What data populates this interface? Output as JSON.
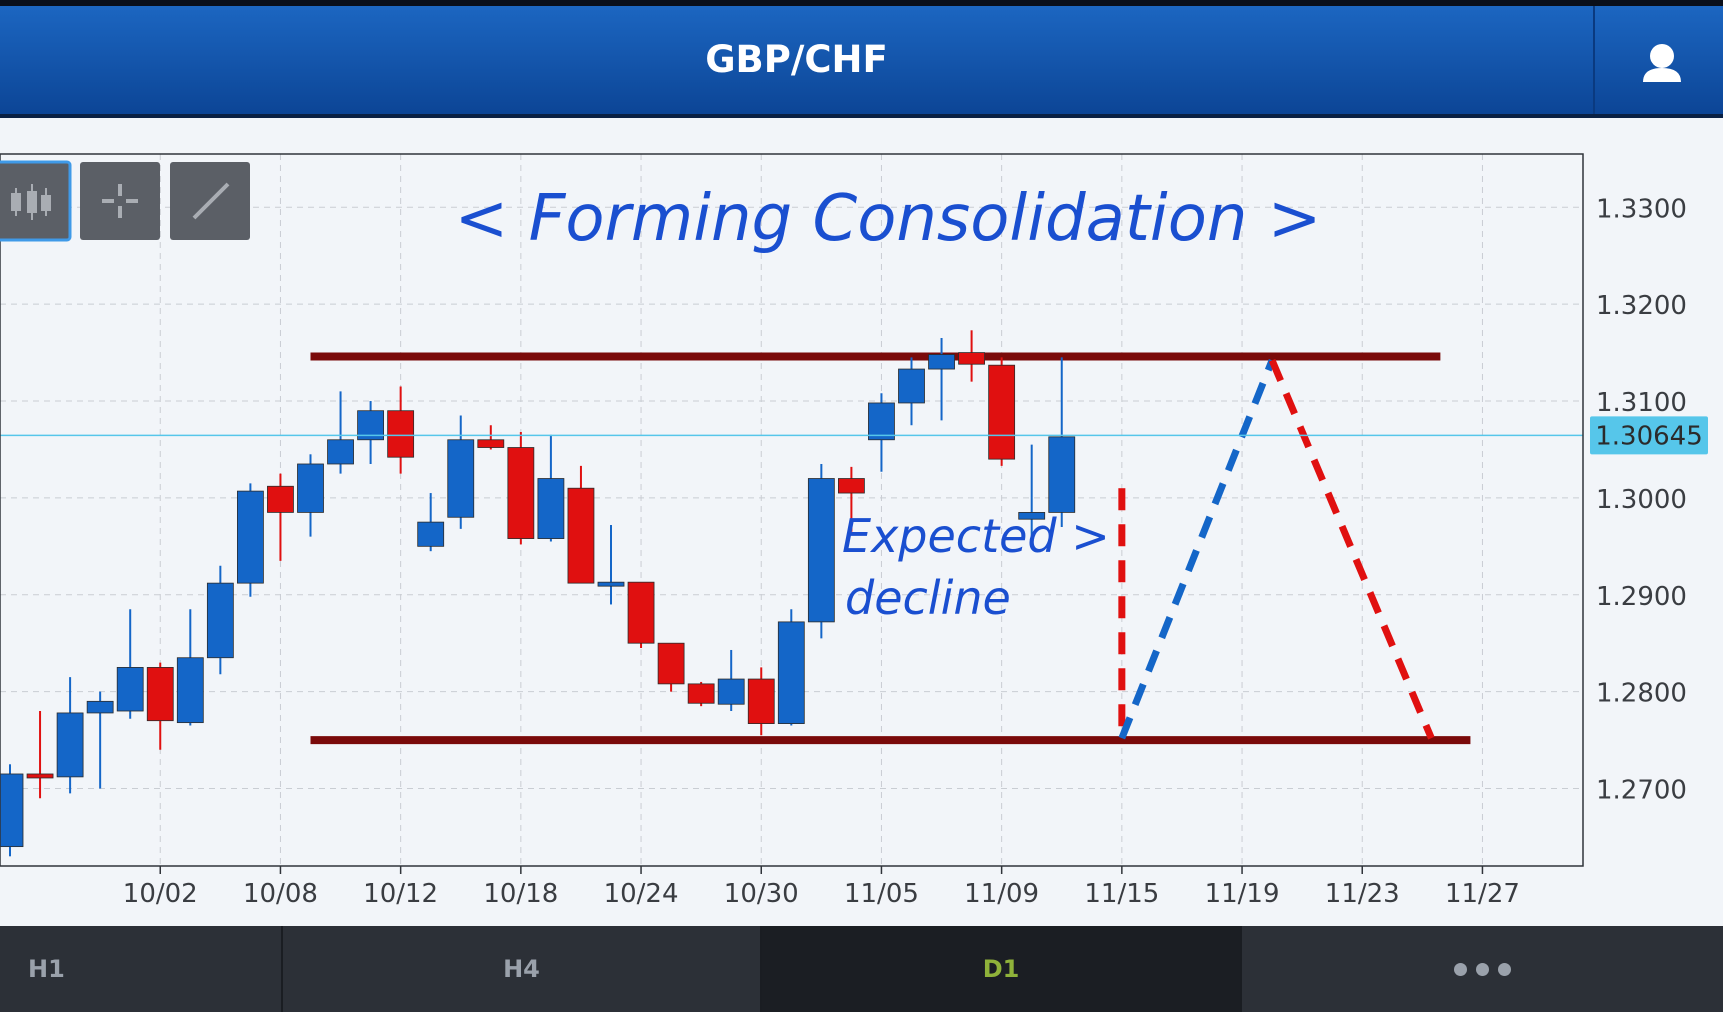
{
  "header": {
    "title": "GBP/CHF"
  },
  "colors": {
    "bull": "#1466c8",
    "bear": "#e01010",
    "level_line": "#7a0a0a",
    "annotation_text": "#1a4fd0",
    "price_line": "#56c6ea",
    "price_tag": "#56c6ea"
  },
  "toolbar": {
    "icons": [
      "candlestick-icon",
      "crosshair-icon",
      "draw-line-icon"
    ]
  },
  "tabs": {
    "items": [
      "H1",
      "H4",
      "D1",
      ""
    ],
    "active": "D1"
  },
  "chart_data": {
    "type": "candlestick",
    "title": "< Forming  Consolidation >",
    "annotation": [
      "Expected >",
      "decline"
    ],
    "y_ticks": [
      "1.3300",
      "1.3200",
      "1.3100",
      "1.3000",
      "1.2900",
      "1.2800",
      "1.2700"
    ],
    "ylim": [
      1.262,
      1.3355
    ],
    "x_ticks": [
      "10/02",
      "10/08",
      "10/12",
      "10/18",
      "10/24",
      "10/30",
      "11/05",
      "11/09",
      "11/15",
      "11/19",
      "11/23",
      "11/27"
    ],
    "x_tick_index": [
      5,
      9,
      13,
      17,
      21,
      25,
      29,
      33,
      37,
      41,
      45,
      49
    ],
    "current_price": 1.30645,
    "current_price_label": "1.30645",
    "grid": true,
    "candles": [
      {
        "o": 1.264,
        "h": 1.2725,
        "l": 1.263,
        "c": 1.2715
      },
      {
        "o": 1.2715,
        "h": 1.278,
        "l": 1.269,
        "c": 1.2712
      },
      {
        "o": 1.2712,
        "h": 1.2815,
        "l": 1.2695,
        "c": 1.2778
      },
      {
        "o": 1.2778,
        "h": 1.28,
        "l": 1.27,
        "c": 1.279
      },
      {
        "o": 1.278,
        "h": 1.2885,
        "l": 1.2772,
        "c": 1.2825
      },
      {
        "o": 1.2825,
        "h": 1.283,
        "l": 1.274,
        "c": 1.277
      },
      {
        "o": 1.2768,
        "h": 1.2885,
        "l": 1.2765,
        "c": 1.2835
      },
      {
        "o": 1.2835,
        "h": 1.293,
        "l": 1.2818,
        "c": 1.2912
      },
      {
        "o": 1.2912,
        "h": 1.3015,
        "l": 1.2898,
        "c": 1.3007
      },
      {
        "o": 1.3012,
        "h": 1.3025,
        "l": 1.2935,
        "c": 1.2985
      },
      {
        "o": 1.2985,
        "h": 1.3045,
        "l": 1.296,
        "c": 1.3035
      },
      {
        "o": 1.3035,
        "h": 1.311,
        "l": 1.3025,
        "c": 1.306
      },
      {
        "o": 1.306,
        "h": 1.31,
        "l": 1.3035,
        "c": 1.309
      },
      {
        "o": 1.309,
        "h": 1.3115,
        "l": 1.3025,
        "c": 1.3042
      },
      {
        "o": 1.295,
        "h": 1.3005,
        "l": 1.2945,
        "c": 1.2975
      },
      {
        "o": 1.298,
        "h": 1.3085,
        "l": 1.2968,
        "c": 1.306
      },
      {
        "o": 1.306,
        "h": 1.3075,
        "l": 1.305,
        "c": 1.3052
      },
      {
        "o": 1.3052,
        "h": 1.3068,
        "l": 1.2952,
        "c": 1.2958
      },
      {
        "o": 1.2958,
        "h": 1.3065,
        "l": 1.2955,
        "c": 1.302
      },
      {
        "o": 1.301,
        "h": 1.3033,
        "l": 1.2912,
        "c": 1.2912
      },
      {
        "o": 1.2912,
        "h": 1.2972,
        "l": 1.289,
        "c": 1.2913
      },
      {
        "o": 1.2913,
        "h": 1.2913,
        "l": 1.2845,
        "c": 1.285
      },
      {
        "o": 1.285,
        "h": 1.285,
        "l": 1.28,
        "c": 1.2808
      },
      {
        "o": 1.2808,
        "h": 1.281,
        "l": 1.2785,
        "c": 1.2788
      },
      {
        "o": 1.2787,
        "h": 1.2843,
        "l": 1.278,
        "c": 1.2813
      },
      {
        "o": 1.2813,
        "h": 1.2825,
        "l": 1.2755,
        "c": 1.2767
      },
      {
        "o": 1.2767,
        "h": 1.2885,
        "l": 1.2765,
        "c": 1.2872
      },
      {
        "o": 1.2872,
        "h": 1.3035,
        "l": 1.2855,
        "c": 1.302
      },
      {
        "o": 1.302,
        "h": 1.3032,
        "l": 1.2965,
        "c": 1.3005
      },
      {
        "o": 1.306,
        "h": 1.3108,
        "l": 1.3027,
        "c": 1.3098
      },
      {
        "o": 1.3098,
        "h": 1.3145,
        "l": 1.3075,
        "c": 1.3133
      },
      {
        "o": 1.3133,
        "h": 1.3165,
        "l": 1.308,
        "c": 1.3148
      },
      {
        "o": 1.315,
        "h": 1.3173,
        "l": 1.312,
        "c": 1.3138
      },
      {
        "o": 1.3137,
        "h": 1.3145,
        "l": 1.3033,
        "c": 1.304
      },
      {
        "o": 1.2978,
        "h": 1.3055,
        "l": 1.295,
        "c": 1.2985
      },
      {
        "o": 1.2985,
        "h": 1.3145,
        "l": 1.297,
        "c": 1.3063
      }
    ],
    "resistance": 1.3146,
    "support": 1.275,
    "resistance_span": [
      10.0,
      47.6
    ],
    "support_span": [
      10.0,
      48.6
    ],
    "projection": [
      {
        "style": "dashed",
        "color": "bear",
        "from": [
          37.0,
          1.301
        ],
        "to": [
          37.0,
          1.275
        ]
      },
      {
        "style": "dashed",
        "color": "bull",
        "from": [
          37.0,
          1.2752
        ],
        "to": [
          42.0,
          1.3142
        ]
      },
      {
        "style": "dashed",
        "color": "bear",
        "from": [
          42.0,
          1.3142
        ],
        "to": [
          47.3,
          1.2752
        ]
      }
    ]
  }
}
